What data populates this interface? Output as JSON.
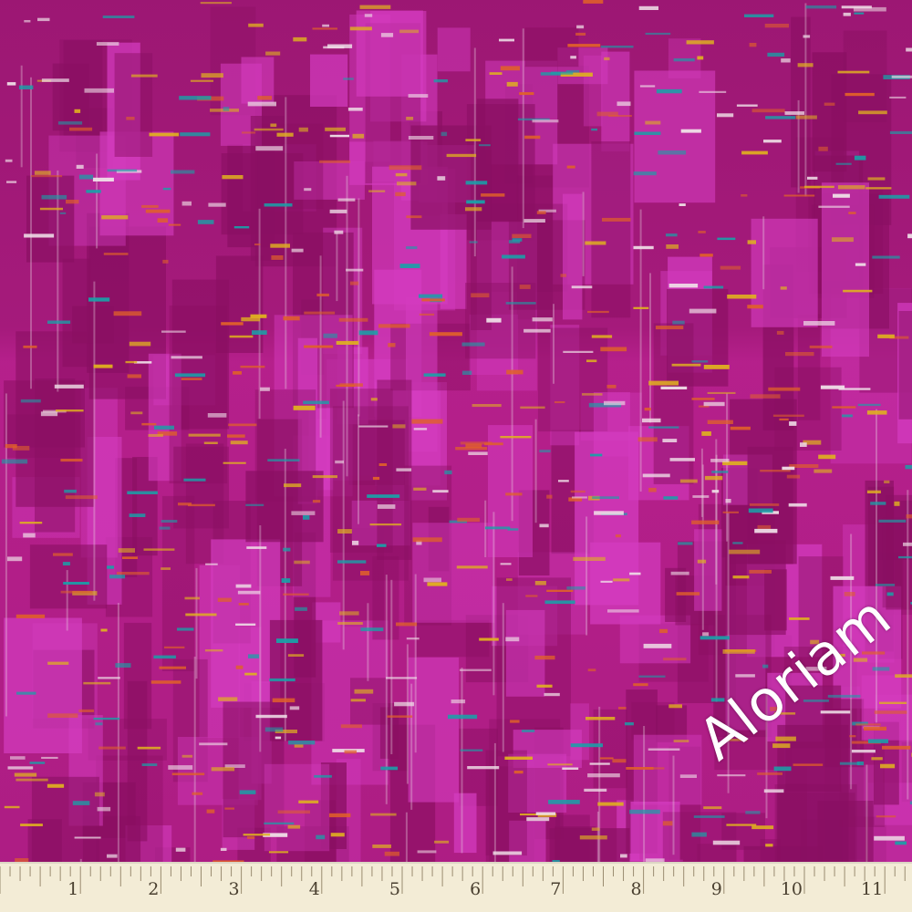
{
  "image": {
    "subject": "fabric-swatch",
    "colors": {
      "base": "#b01e86",
      "dark": "#8a0f62",
      "bright": "#d43cc0",
      "yellow": "#e0b020",
      "orange": "#e0602a",
      "teal": "#1aa0a8",
      "ruler": "#f3ecd6"
    }
  },
  "watermark": {
    "text": "Aloriam"
  },
  "ruler": {
    "unit": "inch",
    "labels": [
      "1",
      "2",
      "3",
      "4",
      "5",
      "6",
      "7",
      "8",
      "9",
      "10",
      "11"
    ]
  }
}
